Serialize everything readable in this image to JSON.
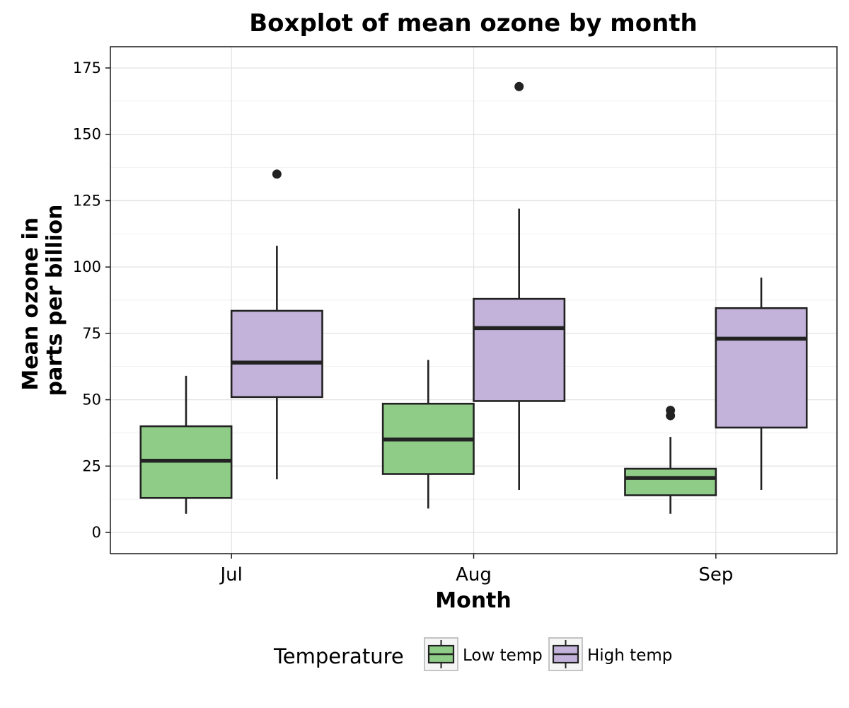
{
  "chart_data": {
    "type": "box",
    "title": "Boxplot of mean ozone by month",
    "xlabel": "Month",
    "ylabel_lines": [
      "Mean ozone in",
      "parts per billion"
    ],
    "categories": [
      "Jul",
      "Aug",
      "Sep"
    ],
    "ylim": [
      -8,
      183
    ],
    "yticks": [
      0,
      25,
      50,
      75,
      100,
      125,
      150,
      175
    ],
    "yticks_labels": [
      "0",
      "25",
      "50",
      "75",
      "100",
      "125",
      "150",
      "175"
    ],
    "grid": true,
    "legend": {
      "title": "Temperature",
      "position": "bottom"
    },
    "series": [
      {
        "name": "Low temp",
        "color": "#8fcc87",
        "boxes": [
          {
            "category": "Jul",
            "min": 7,
            "q1": 13,
            "median": 27,
            "q3": 40,
            "max": 59,
            "outliers": []
          },
          {
            "category": "Aug",
            "min": 9,
            "q1": 22,
            "median": 35,
            "q3": 48.5,
            "max": 65,
            "outliers": []
          },
          {
            "category": "Sep",
            "min": 7,
            "q1": 14,
            "median": 20.5,
            "q3": 24,
            "max": 36,
            "outliers": [
              44,
              46
            ]
          }
        ]
      },
      {
        "name": "High temp",
        "color": "#c3b3da",
        "boxes": [
          {
            "category": "Jul",
            "min": 20,
            "q1": 51,
            "median": 64,
            "q3": 83.5,
            "max": 108,
            "outliers": [
              135
            ]
          },
          {
            "category": "Aug",
            "min": 16,
            "q1": 49.5,
            "median": 77,
            "q3": 88,
            "max": 122,
            "outliers": [
              168
            ]
          },
          {
            "category": "Sep",
            "min": 16,
            "q1": 39.5,
            "median": 73,
            "q3": 84.5,
            "max": 96,
            "outliers": []
          }
        ]
      }
    ]
  }
}
